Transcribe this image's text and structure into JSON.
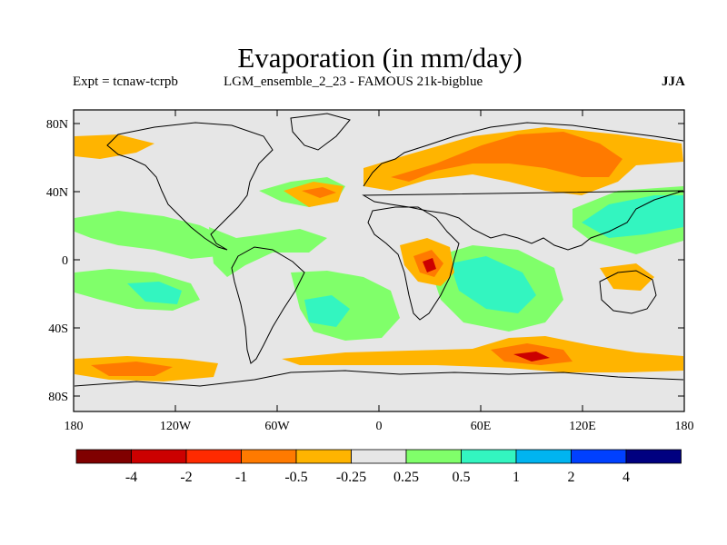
{
  "header": {
    "title": "Evaporation (in mm/day)",
    "experiment": "Expt = tcnaw-tcrpb",
    "ensemble": "LGM_ensemble_2_23 - FAMOUS 21k-bigblue",
    "season": "JJA"
  },
  "axes": {
    "lat_ticks": [
      "80N",
      "40N",
      "0",
      "40S",
      "80S"
    ],
    "lon_ticks": [
      "180",
      "120W",
      "60W",
      "0",
      "60E",
      "120E",
      "180"
    ]
  },
  "colorbar": {
    "labels": [
      "-4",
      "-2",
      "-1",
      "-0.5",
      "-0.25",
      "0.25",
      "0.5",
      "1",
      "2",
      "4"
    ],
    "colors": [
      "#800000",
      "#cc0000",
      "#ff2a00",
      "#ff7a00",
      "#ffb400",
      "#e6e6e6",
      "#80ff6a",
      "#33f5c0",
      "#00b4f0",
      "#0040ff",
      "#000080"
    ]
  },
  "colors": {
    "land_bg": "#e6e6e6",
    "strong_neg": "#ff7a00",
    "mild_neg": "#ffb400",
    "mild_pos": "#80ff6a",
    "strong_pos": "#33f5c0",
    "extreme_neg": "#cc0000"
  }
}
